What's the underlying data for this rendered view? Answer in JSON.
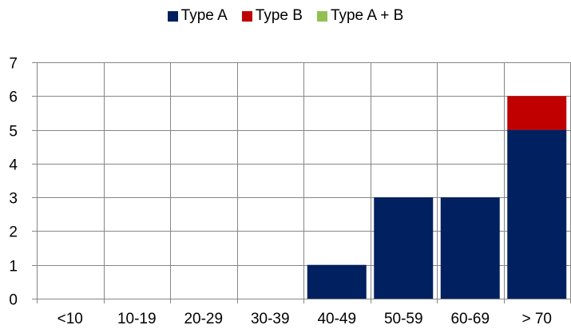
{
  "chart_data": {
    "type": "bar",
    "stacked": true,
    "categories": [
      "<10",
      "10-19",
      "20-29",
      "30-39",
      "40-49",
      "50-59",
      "60-69",
      "> 70"
    ],
    "series": [
      {
        "name": "Type A",
        "color": "#002060",
        "values": [
          0,
          0,
          0,
          0,
          1,
          3,
          3,
          5
        ]
      },
      {
        "name": "Type B",
        "color": "#C00000",
        "values": [
          0,
          0,
          0,
          0,
          0,
          0,
          0,
          1
        ]
      },
      {
        "name": "Type A + B",
        "color": "#92C050",
        "values": [
          0,
          0,
          0,
          0,
          0,
          0,
          0,
          0
        ]
      }
    ],
    "ylim": [
      0,
      7
    ],
    "yticks": [
      0,
      1,
      2,
      3,
      4,
      5,
      6,
      7
    ],
    "grid": true,
    "legend_position": "top",
    "title": "",
    "xlabel": "",
    "ylabel": ""
  }
}
